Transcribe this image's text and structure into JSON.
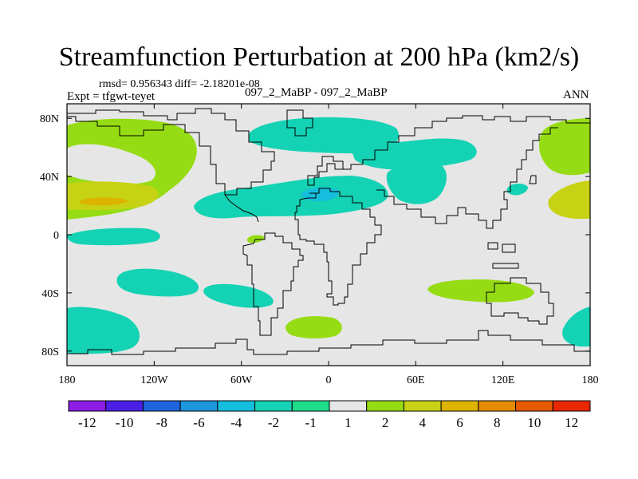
{
  "title": "Streamfunction Perturbation at 200 hPa (km2/s)",
  "stats": "rmsd= 0.956343 diff= -2.18201e-08",
  "expt": "Expt = tfgwt-teyet",
  "case": "097_2_MaBP - 097_2_MaBP",
  "period": "ANN",
  "chart_data": {
    "type": "heatmap",
    "title": "Streamfunction Perturbation at 200 hPa (km2/s)",
    "xlabel": "",
    "ylabel": "",
    "xlim": [
      -180,
      180
    ],
    "ylim": [
      -90,
      90
    ],
    "x_ticks": [
      {
        "value": -180,
        "label": "180"
      },
      {
        "value": -120,
        "label": "120W"
      },
      {
        "value": -60,
        "label": "60W"
      },
      {
        "value": 0,
        "label": "0"
      },
      {
        "value": 60,
        "label": "60E"
      },
      {
        "value": 120,
        "label": "120E"
      },
      {
        "value": 180,
        "label": "180"
      }
    ],
    "y_ticks": [
      {
        "value": 80,
        "label": "80N"
      },
      {
        "value": 40,
        "label": "40N"
      },
      {
        "value": 0,
        "label": "0"
      },
      {
        "value": -40,
        "label": "40S"
      },
      {
        "value": -80,
        "label": "80S"
      }
    ],
    "colorbar": {
      "colors": [
        "#8c1ee6",
        "#4b1ee6",
        "#1e64dc",
        "#1e96dc",
        "#14bedc",
        "#14d2b4",
        "#1edc8c",
        "#e6e6e6",
        "#96dc14",
        "#c8d214",
        "#dcb400",
        "#e68c00",
        "#e65a00",
        "#e62800"
      ],
      "levels": [
        "-12",
        "-10",
        "-8",
        "-6",
        "-4",
        "-2",
        "-1",
        "1",
        "2",
        "4",
        "6",
        "8",
        "10",
        "12"
      ]
    },
    "background_value_range": [
      -1,
      1
    ],
    "regions": [
      {
        "name": "north-pacific-west",
        "level": "2",
        "lon": -150,
        "lat": 55
      },
      {
        "name": "pacific-subtropical-max",
        "level": "4",
        "lon": -155,
        "lat": 25
      },
      {
        "name": "pacific-inner-max",
        "level": "6",
        "lon": -160,
        "lat": 22
      },
      {
        "name": "north-atlantic",
        "level": "-2",
        "lon": -40,
        "lat": 65
      },
      {
        "name": "eurasia-north",
        "level": "-2",
        "lon": 40,
        "lat": 60
      },
      {
        "name": "atlantic-subtropical",
        "level": "-2",
        "lon": -20,
        "lat": 28
      },
      {
        "name": "mediterranean-min",
        "level": "-4",
        "lon": -5,
        "lat": 28
      },
      {
        "name": "east-asia-west",
        "level": "-2",
        "lon": 75,
        "lat": 50
      },
      {
        "name": "north-pacific-east",
        "level": "2",
        "lon": 165,
        "lat": 60
      },
      {
        "name": "east-pacific-subtropical",
        "level": "4",
        "lon": 170,
        "lat": 22
      },
      {
        "name": "tropical-east-pacific",
        "level": "-2",
        "lon": -140,
        "lat": 0
      },
      {
        "name": "south-pacific",
        "level": "-2",
        "lon": -110,
        "lat": -33
      },
      {
        "name": "south-america-west",
        "level": "-2",
        "lon": -70,
        "lat": -40
      },
      {
        "name": "south-atlantic",
        "level": "2",
        "lon": -10,
        "lat": -68
      },
      {
        "name": "indian-ocean-south",
        "level": "2",
        "lon": 75,
        "lat": -37
      },
      {
        "name": "southern-ocean-west",
        "level": "-2",
        "lon": -165,
        "lat": -70
      },
      {
        "name": "southern-ocean-east",
        "level": "-2",
        "lon": 175,
        "lat": -65
      },
      {
        "name": "pacific-small",
        "level": "-2",
        "lon": 130,
        "lat": 32
      },
      {
        "name": "tropical-atlantic-small",
        "level": "2",
        "lon": -45,
        "lat": -3
      }
    ]
  }
}
